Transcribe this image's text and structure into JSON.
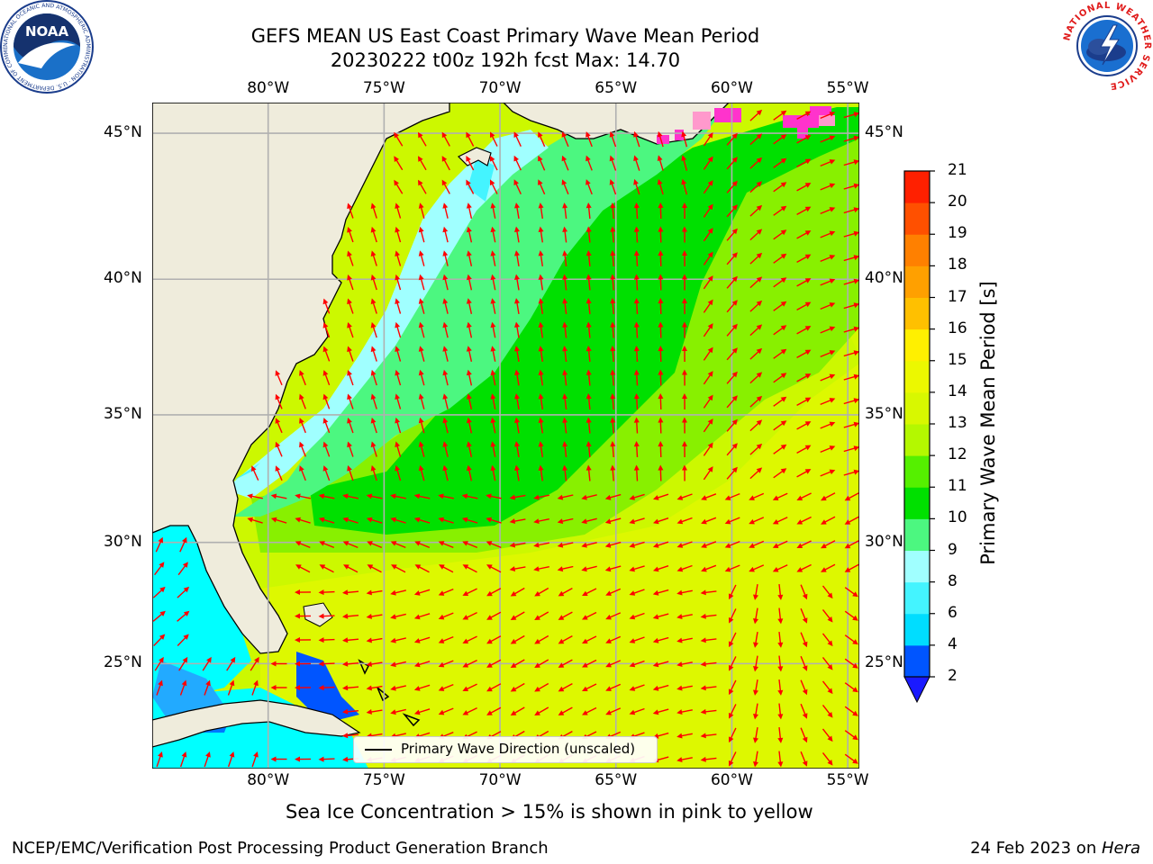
{
  "title": {
    "line1": "GEFS MEAN US East Coast Primary Wave Mean Period",
    "line2": "20230222 t00z 192h fcst   Max: 14.70"
  },
  "logos": {
    "noaa": {
      "text": "NOAA",
      "ring_text": "NATIONAL OCEANIC AND ATMOSPHERIC ADMINISTRATION · U.S. DEPARTMENT OF COMMERCE"
    },
    "nws": {
      "ring_text": "NATIONAL WEATHER SERVICE"
    }
  },
  "map": {
    "lon_labels": [
      "80°W",
      "75°W",
      "70°W",
      "65°W",
      "60°W",
      "55°W"
    ],
    "lat_labels": [
      "45°N",
      "40°N",
      "35°N",
      "30°N",
      "25°N"
    ],
    "extent": {
      "lon": [
        -85,
        -54.5
      ],
      "lat": [
        20.5,
        46
      ]
    },
    "colors": {
      "land": "#efecdc",
      "arrow": "#ff0000",
      "grid": "#b0b0b0",
      "ice": "#ff33cc"
    },
    "legend": "Primary Wave Direction (unscaled)",
    "note": "Sea Ice Concentration > 15% is shown in pink to yellow"
  },
  "colorbar": {
    "label": "Primary Wave Mean Period [s]",
    "ticks": [
      "2",
      "4",
      "6",
      "8",
      "9",
      "10",
      "11",
      "12",
      "13",
      "14",
      "15",
      "16",
      "17",
      "18",
      "19",
      "20",
      "21"
    ],
    "colors": [
      "#0055ff",
      "#00ddff",
      "#44f4ff",
      "#a0ffff",
      "#4cf780",
      "#00e000",
      "#55f000",
      "#b4f800",
      "#d8f800",
      "#ecf800",
      "#fff000",
      "#ffc000",
      "#ffa000",
      "#ff8000",
      "#ff5000",
      "#ff2000"
    ],
    "extend_color": "#1a1aff"
  },
  "footer": {
    "left": "NCEP/EMC/Verification Post Processing Product Generation Branch",
    "right_date": "24 Feb 2023 on ",
    "right_machine": "Hera"
  }
}
